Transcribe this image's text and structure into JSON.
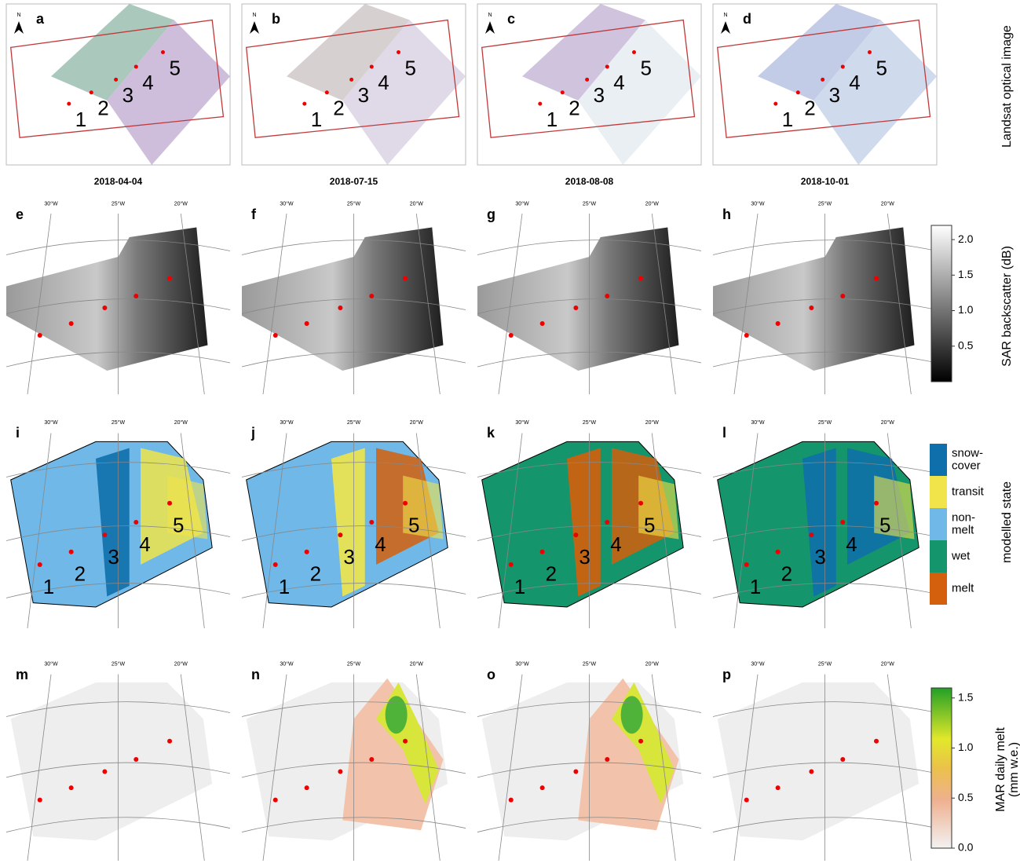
{
  "row_labels": [
    "Landsat optical image",
    "SAR backscatter (dB)",
    "modelled state",
    "MAR daily melt",
    "(mm w.e.)"
  ],
  "panels": [
    [
      "a",
      "b",
      "c",
      "d"
    ],
    [
      "e",
      "f",
      "g",
      "h"
    ],
    [
      "i",
      "j",
      "k",
      "l"
    ],
    [
      "m",
      "n",
      "o",
      "p"
    ]
  ],
  "dates": [
    "2018-04-04",
    "2018-07-15",
    "2018-08-08",
    "2018-10-01"
  ],
  "sites": [
    "1",
    "2",
    "3",
    "4",
    "5"
  ],
  "north": "N",
  "lon_labels": [
    "30°W",
    "25°W",
    "20°W"
  ],
  "sar_colorbar": {
    "ylim": [
      0,
      2.2
    ],
    "yticks": [
      {
        "value": 0.5,
        "label": "0.5"
      },
      {
        "value": 1.0,
        "label": "1.0"
      },
      {
        "value": 1.5,
        "label": "1.5"
      },
      {
        "value": 2.0,
        "label": "2.0"
      }
    ]
  },
  "state_legend": [
    {
      "label": [
        "snow-",
        "cover"
      ],
      "color": "#0e6fab"
    },
    {
      "label": [
        "transit"
      ],
      "color": "#f0e44a"
    },
    {
      "label": [
        "non-",
        "melt"
      ],
      "color": "#6fb8e8"
    },
    {
      "label": [
        "wet"
      ],
      "color": "#14956b"
    },
    {
      "label": [
        "melt"
      ],
      "color": "#d45f0c"
    }
  ],
  "mar_colorbar": {
    "ylim": [
      0,
      1.6
    ],
    "yticks": [
      {
        "value": 0.0,
        "label": "0.0"
      },
      {
        "value": 0.5,
        "label": "0.5"
      },
      {
        "value": 1.0,
        "label": "1.0"
      },
      {
        "value": 1.5,
        "label": "1.5"
      }
    ]
  }
}
